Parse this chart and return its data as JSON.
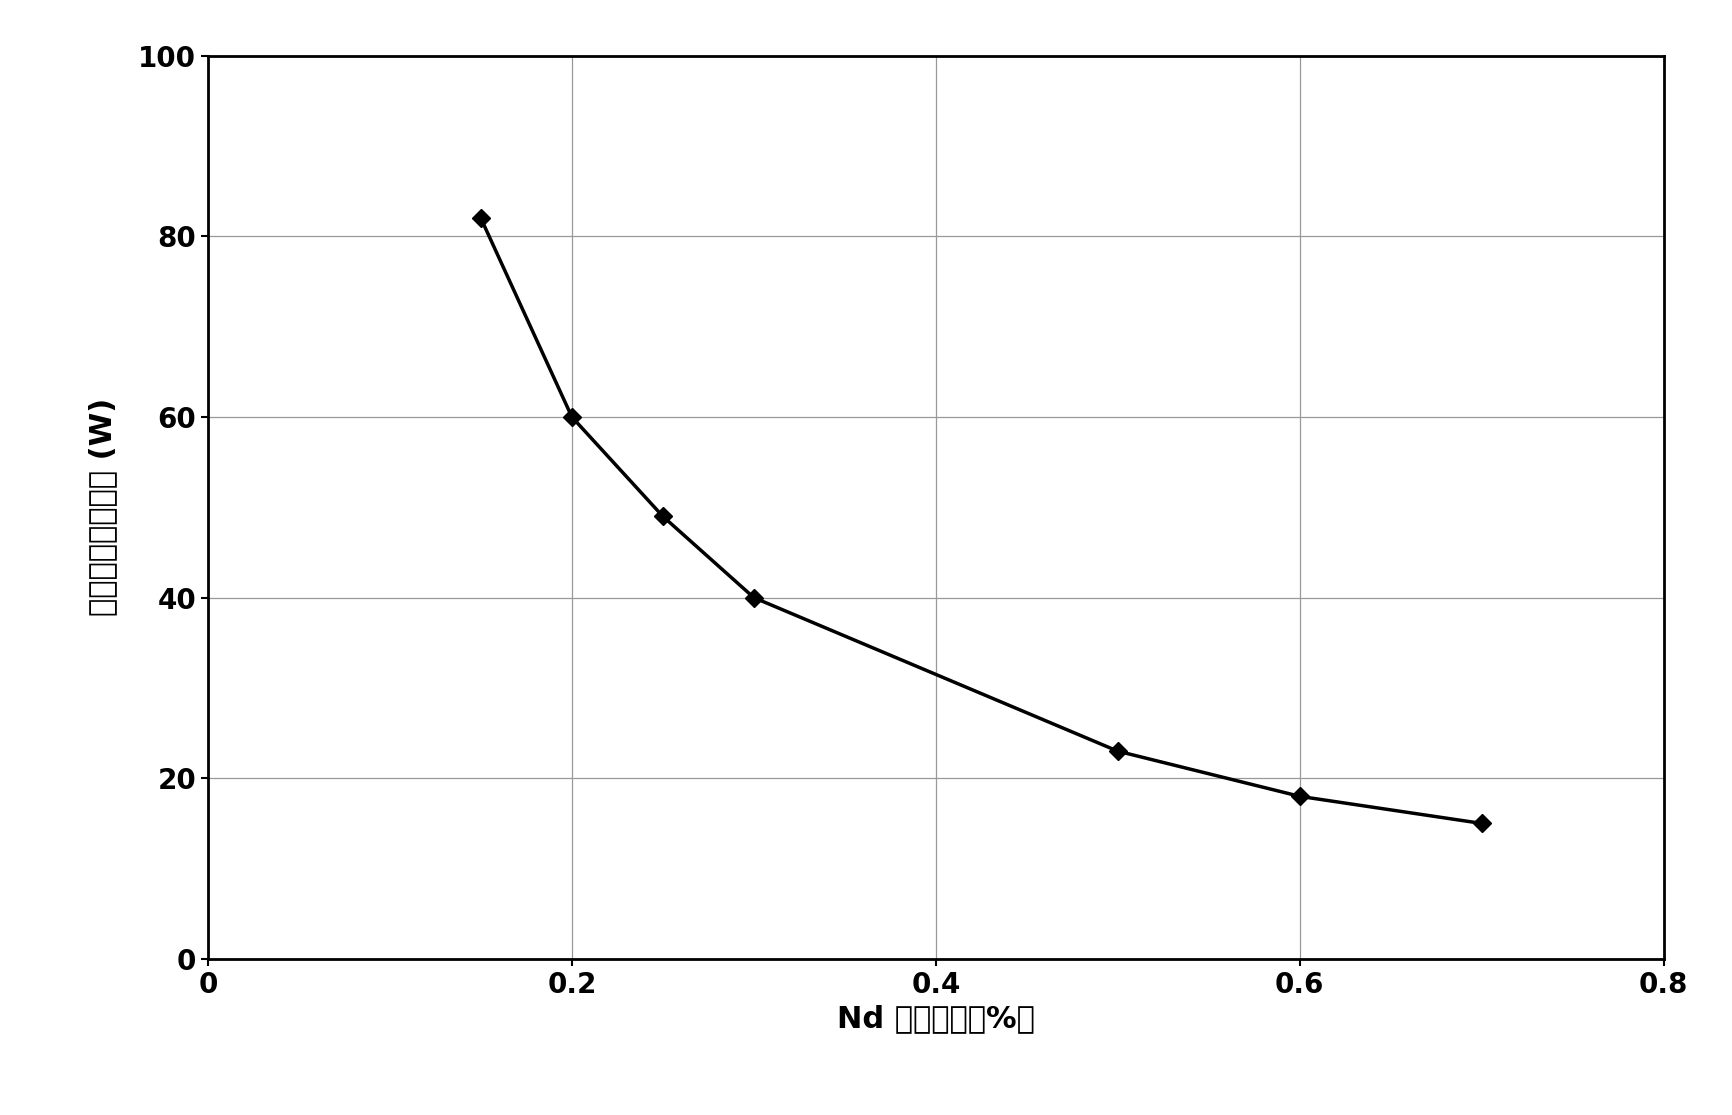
{
  "x": [
    0.15,
    0.2,
    0.25,
    0.3,
    0.5,
    0.6,
    0.7
  ],
  "y": [
    82,
    60,
    49,
    40,
    23,
    18,
    15
  ],
  "xlabel": "Nd 掺杂浓度（%）",
  "ylabel": "最大吸收泵浦功率 (W)",
  "xlim": [
    0,
    0.8
  ],
  "ylim": [
    0,
    100
  ],
  "xticks": [
    0,
    0.2,
    0.4,
    0.6,
    0.8
  ],
  "yticks": [
    0,
    20,
    40,
    60,
    80,
    100
  ],
  "line_color": "#000000",
  "marker_color": "#000000",
  "marker_style": "D",
  "marker_size": 9,
  "line_width": 2.5,
  "background_color": "#ffffff",
  "grid_color": "#999999",
  "label_fontsize": 22,
  "tick_fontsize": 20
}
